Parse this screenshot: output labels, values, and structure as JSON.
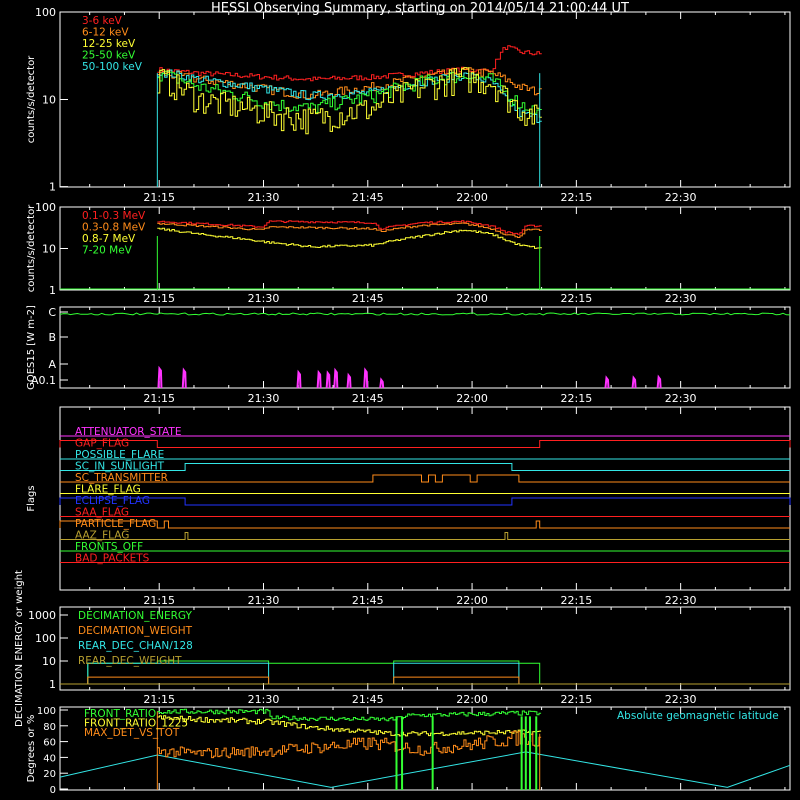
{
  "title": "HESSI Observing Summary, starting on 2014/05/14 21:00:44 UT",
  "colors": {
    "background": "#000000",
    "axes": "#ffffff",
    "red": "#ff2020",
    "orange": "#ff8c1a",
    "yellow": "#ffff33",
    "green": "#33ff33",
    "cyan": "#33e6e6",
    "magenta": "#ff33ff",
    "blue": "#2233ff",
    "olive": "#b8a030"
  },
  "time_ticks": [
    "21:15",
    "21:30",
    "21:45",
    "22:00",
    "22:15",
    "22:30"
  ],
  "chart_data": [
    {
      "id": "panel1",
      "type": "line",
      "ylabel": "counts/s/detector",
      "yscale": "log",
      "ylim": [
        1,
        100
      ],
      "yticks": [
        "1",
        "10",
        "100"
      ],
      "data_window_min": [
        14,
        69
      ],
      "legend": [
        {
          "label": "3-6 keV",
          "color": "#ff2020"
        },
        {
          "label": "6-12 keV",
          "color": "#ff8c1a"
        },
        {
          "label": "12-25 keV",
          "color": "#ffff33"
        },
        {
          "label": "25-50 keV",
          "color": "#33ff33"
        },
        {
          "label": "50-100 keV",
          "color": "#33e6e6"
        }
      ],
      "series": [
        {
          "color": "#ff2020",
          "x": [
            14,
            20,
            30,
            36,
            45,
            52,
            58,
            62,
            64,
            66,
            69
          ],
          "y": [
            22,
            20,
            18,
            17,
            18,
            20,
            22,
            21,
            40,
            35,
            33
          ],
          "noise": 0.07
        },
        {
          "color": "#ff8c1a",
          "x": [
            14,
            20,
            30,
            36,
            45,
            52,
            58,
            62,
            64,
            66,
            69
          ],
          "y": [
            20,
            17,
            13,
            11,
            14,
            18,
            21,
            20,
            17,
            14,
            12
          ],
          "noise": 0.12
        },
        {
          "color": "#33e6e6",
          "x": [
            14,
            20,
            30,
            36,
            45,
            52,
            58,
            62,
            64,
            66,
            69
          ],
          "y": [
            21,
            17,
            13,
            11,
            12,
            16,
            19,
            16,
            10,
            7,
            6
          ],
          "noise": 0.12
        },
        {
          "color": "#33ff33",
          "x": [
            14,
            20,
            30,
            36,
            45,
            52,
            58,
            62,
            64,
            66,
            69
          ],
          "y": [
            20,
            14,
            9,
            8,
            11,
            16,
            19,
            17,
            12,
            9,
            7
          ],
          "noise": 0.18
        },
        {
          "color": "#ffff33",
          "x": [
            14,
            20,
            30,
            36,
            45,
            52,
            58,
            62,
            64,
            66,
            69
          ],
          "y": [
            18,
            10,
            7,
            6,
            8,
            14,
            18,
            16,
            11,
            8,
            6
          ],
          "noise": 0.35
        }
      ]
    },
    {
      "id": "panel2",
      "type": "line",
      "ylabel": "counts/s/detector",
      "yscale": "log",
      "ylim": [
        1,
        100
      ],
      "yticks": [
        "1",
        "10",
        "100"
      ],
      "data_window_min": [
        14,
        69
      ],
      "legend": [
        {
          "label": "0.1-0.3 MeV",
          "color": "#ff2020"
        },
        {
          "label": "0.3-0.8 MeV",
          "color": "#ff8c1a"
        },
        {
          "label": "0.8-7 MeV",
          "color": "#ffff33"
        },
        {
          "label": "7-20 MeV",
          "color": "#33ff33"
        }
      ],
      "series": [
        {
          "color": "#ff2020",
          "x": [
            14,
            20,
            29,
            30,
            36,
            45,
            46,
            52,
            58,
            62,
            64,
            66,
            67,
            69
          ],
          "y": [
            45,
            40,
            33,
            45,
            44,
            42,
            30,
            42,
            45,
            35,
            25,
            22,
            35,
            35
          ],
          "noise": 0.05
        },
        {
          "color": "#ff8c1a",
          "x": [
            14,
            20,
            29,
            30,
            36,
            45,
            46,
            52,
            58,
            62,
            64,
            66,
            67,
            69
          ],
          "y": [
            40,
            35,
            28,
            33,
            32,
            30,
            26,
            36,
            40,
            30,
            22,
            19,
            28,
            28
          ],
          "noise": 0.05
        },
        {
          "color": "#ffff33",
          "x": [
            14,
            20,
            30,
            36,
            45,
            52,
            58,
            62,
            64,
            66,
            69
          ],
          "y": [
            30,
            22,
            14,
            11,
            12,
            20,
            28,
            22,
            16,
            12,
            10
          ],
          "noise": 0.06
        }
      ]
    },
    {
      "id": "panel3",
      "type": "line",
      "ylabel": "GOES15 [W m-2]",
      "yticks": [
        "A0.1",
        "A",
        "B",
        "C"
      ],
      "goes_level": "C",
      "spikes_min": [
        14.3,
        17.8,
        34.3,
        37.2,
        38.5,
        39.6,
        41.5,
        43.9,
        46.2,
        78.6,
        82.5,
        86.1
      ]
    },
    {
      "id": "panel4",
      "type": "table",
      "ylabel": "Flags",
      "flags": [
        {
          "label": "ATTENUATOR_STATE",
          "color": "#ff33ff",
          "on": []
        },
        {
          "label": "GAP_FLAG",
          "color": "#ff2020",
          "on": [
            [
              0,
              14
            ],
            [
              69,
              105
            ]
          ]
        },
        {
          "label": "POSSIBLE_FLARE",
          "color": "#33e6e6",
          "on": []
        },
        {
          "label": "SC_IN_SUNLIGHT",
          "color": "#33e6e6",
          "on": [
            [
              18,
              65
            ]
          ]
        },
        {
          "label": "SC_TRANSMITTER",
          "color": "#ff8c1a",
          "on": [
            [
              45,
              52
            ],
            [
              53,
              54
            ],
            [
              55,
              59
            ],
            [
              60,
              66
            ]
          ]
        },
        {
          "label": "FLARE_FLAG",
          "color": "#ffff33",
          "on": []
        },
        {
          "label": "ECLIPSE_FLAG",
          "color": "#2233ff",
          "on": [
            [
              0,
              18
            ],
            [
              65,
              105
            ]
          ]
        },
        {
          "label": "SAA_FLAG",
          "color": "#ff2020",
          "on": []
        },
        {
          "label": "PARTICLE_FLAG",
          "color": "#ff8c1a",
          "on": [
            [
              0,
              14
            ],
            [
              15,
              15.6
            ],
            [
              68.5,
              69
            ]
          ]
        },
        {
          "label": "AAZ_FLAG",
          "color": "#b8a030",
          "on": [
            [
              18,
              18.4
            ],
            [
              64,
              64.4
            ]
          ]
        },
        {
          "label": "FRONTS_OFF",
          "color": "#33ff33",
          "on": []
        },
        {
          "label": "BAD_PACKETS",
          "color": "#ff2020",
          "on": []
        }
      ]
    },
    {
      "id": "panel5",
      "type": "line",
      "ylabel": "DECIMATION ENERGY or weight",
      "yscale": "log",
      "ylim": [
        1,
        1000
      ],
      "yticks": [
        "1",
        "10",
        "100",
        "1000"
      ],
      "legend": [
        {
          "label": "DECIMATION_ENERGY",
          "color": "#33ff33"
        },
        {
          "label": "DECIMATION_WEIGHT",
          "color": "#ff8c1a"
        },
        {
          "label": "REAR_DEC_CHAN/128",
          "color": "#33e6e6"
        },
        {
          "label": "REAR_DEC_WEIGHT",
          "color": "#b8a030"
        }
      ],
      "series": [
        {
          "color": "#33ff33",
          "x": [
            4,
            4,
            14,
            14,
            30,
            30,
            48,
            48,
            66,
            66,
            69,
            69
          ],
          "y": [
            1,
            8,
            8,
            10,
            10,
            8,
            8,
            10,
            10,
            8,
            8,
            1
          ]
        },
        {
          "color": "#33e6e6",
          "x": [
            4,
            4,
            30,
            30,
            48,
            48,
            66,
            66
          ],
          "y": [
            1,
            8,
            8,
            1,
            1,
            8,
            8,
            1
          ]
        },
        {
          "color": "#ff8c1a",
          "x": [
            0,
            4,
            4,
            30,
            30,
            48,
            48,
            66,
            66,
            69,
            69,
            105
          ],
          "y": [
            1,
            1,
            2,
            2,
            1,
            1,
            2,
            2,
            1,
            1,
            1,
            1
          ]
        },
        {
          "color": "#b8a030",
          "x": [
            0,
            105
          ],
          "y": [
            1,
            1
          ]
        }
      ]
    },
    {
      "id": "panel6",
      "type": "line",
      "ylabel": "Degrees or %",
      "ylim": [
        0,
        100
      ],
      "yticks": [
        "0",
        "20",
        "40",
        "60",
        "80",
        "100"
      ],
      "legend": [
        {
          "label": "FRONT_RATIO",
          "color": "#33ff33"
        },
        {
          "label": "FRONT_RATIO_1225",
          "color": "#ffff33"
        },
        {
          "label": "MAX_DET_VS_TOT",
          "color": "#ff8c1a"
        }
      ],
      "annotation": "Absolute geomagnetic latitude",
      "series": [
        {
          "color": "#33e6e6",
          "x": [
            0,
            14,
            39,
            67,
            96,
            105
          ],
          "y": [
            15,
            43,
            2,
            47,
            2,
            30
          ]
        },
        {
          "color": "#33ff33",
          "x": [
            14,
            30,
            30,
            48,
            50,
            66,
            69
          ],
          "y": [
            98,
            98,
            90,
            88,
            93,
            96,
            96
          ],
          "noise": 0.03
        },
        {
          "color": "#ffff33",
          "x": [
            14,
            30,
            36,
            48,
            52,
            66,
            69
          ],
          "y": [
            90,
            85,
            78,
            70,
            70,
            72,
            72
          ],
          "noise": 0.04
        },
        {
          "color": "#ff8c1a",
          "x": [
            14,
            20,
            30,
            36,
            45,
            52,
            58,
            62,
            66,
            69
          ],
          "y": [
            48,
            45,
            48,
            52,
            58,
            50,
            55,
            60,
            65,
            62
          ],
          "noise": 0.15
        }
      ],
      "green_spikes_min": [
        48.4,
        49.2,
        53.6,
        66.4,
        67,
        67.6,
        68.5
      ]
    }
  ]
}
